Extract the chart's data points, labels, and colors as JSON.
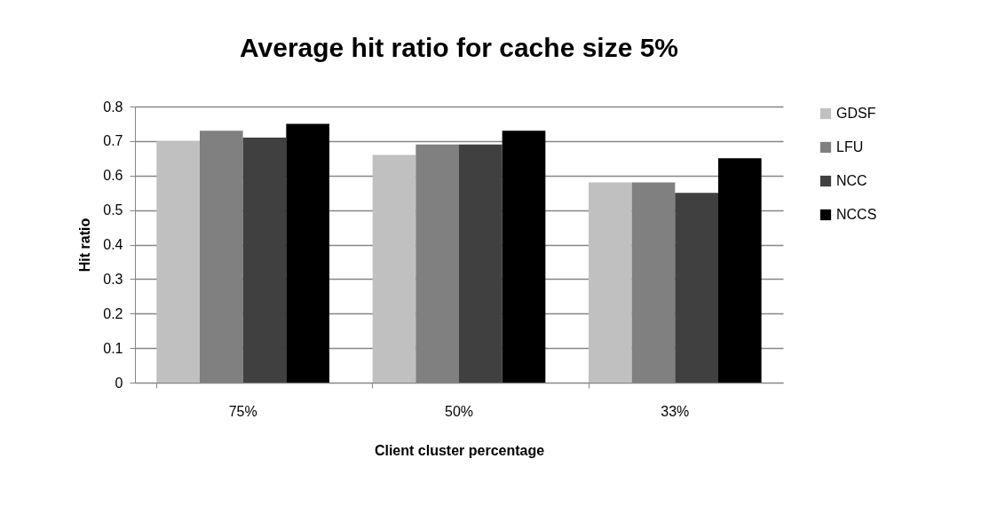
{
  "chart_data": {
    "type": "bar",
    "title": "Average hit ratio for cache size 5%",
    "xlabel": "Client cluster percentage",
    "ylabel": "Hit ratio",
    "categories": [
      "75%",
      "50%",
      "33%"
    ],
    "series": [
      {
        "name": "GDSF",
        "color": "#c0c0c0",
        "values": [
          0.7,
          0.66,
          0.58
        ]
      },
      {
        "name": "LFU",
        "color": "#808080",
        "values": [
          0.73,
          0.69,
          0.58
        ]
      },
      {
        "name": "NCC",
        "color": "#404040",
        "values": [
          0.71,
          0.69,
          0.55
        ]
      },
      {
        "name": "NCCS",
        "color": "#000000",
        "values": [
          0.75,
          0.73,
          0.65
        ]
      }
    ],
    "ylim": [
      0,
      0.8
    ],
    "yticks": [
      0,
      0.1,
      0.2,
      0.3,
      0.4,
      0.5,
      0.6,
      0.7,
      0.8
    ],
    "grid": "y",
    "legend": "right"
  }
}
